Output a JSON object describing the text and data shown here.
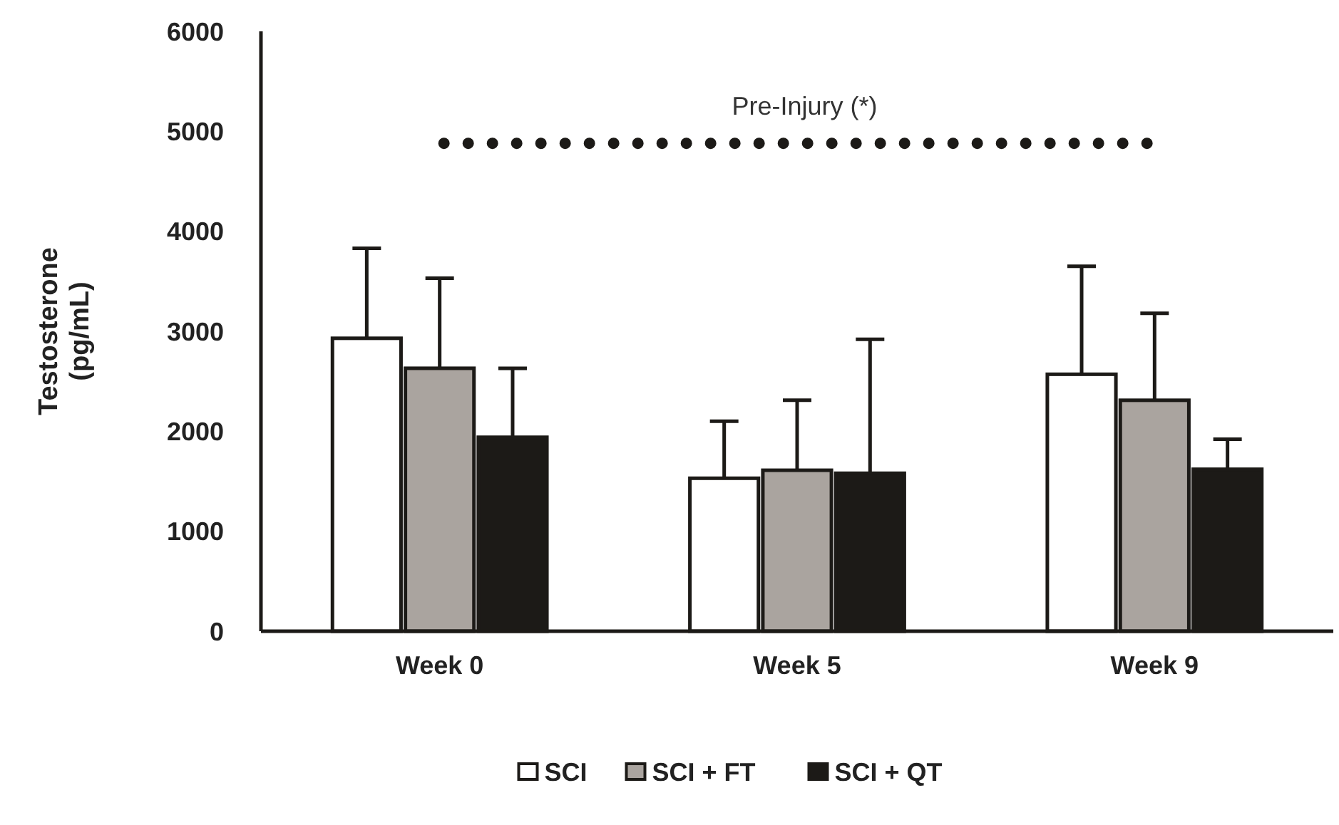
{
  "chart_data": {
    "type": "bar",
    "ylabel": "Testosterone\n(pg/mL)",
    "categories": [
      "Week 0",
      "Week 5",
      "Week 9"
    ],
    "series": [
      {
        "name": "SCI",
        "color": "#ffffff",
        "values": [
          2930,
          1530,
          2570
        ],
        "errors": [
          900,
          570,
          1080
        ]
      },
      {
        "name": "SCI + FT",
        "color": "#aaa49f",
        "values": [
          2630,
          1610,
          2310
        ],
        "errors": [
          900,
          700,
          870
        ]
      },
      {
        "name": "SCI + QT",
        "color": "#1c1a17",
        "values": [
          1940,
          1580,
          1620
        ],
        "errors": [
          690,
          1340,
          300
        ]
      }
    ],
    "ylim": [
      0,
      6000
    ],
    "yticks": [
      0,
      1000,
      2000,
      3000,
      4000,
      5000,
      6000
    ],
    "grid": false,
    "legend": "bottom",
    "ref_lines": [
      {
        "axis": "y",
        "value": 4880,
        "label": "Pre-Injury (*)",
        "line_style": "dotted",
        "color": "#1c1a17"
      }
    ]
  }
}
